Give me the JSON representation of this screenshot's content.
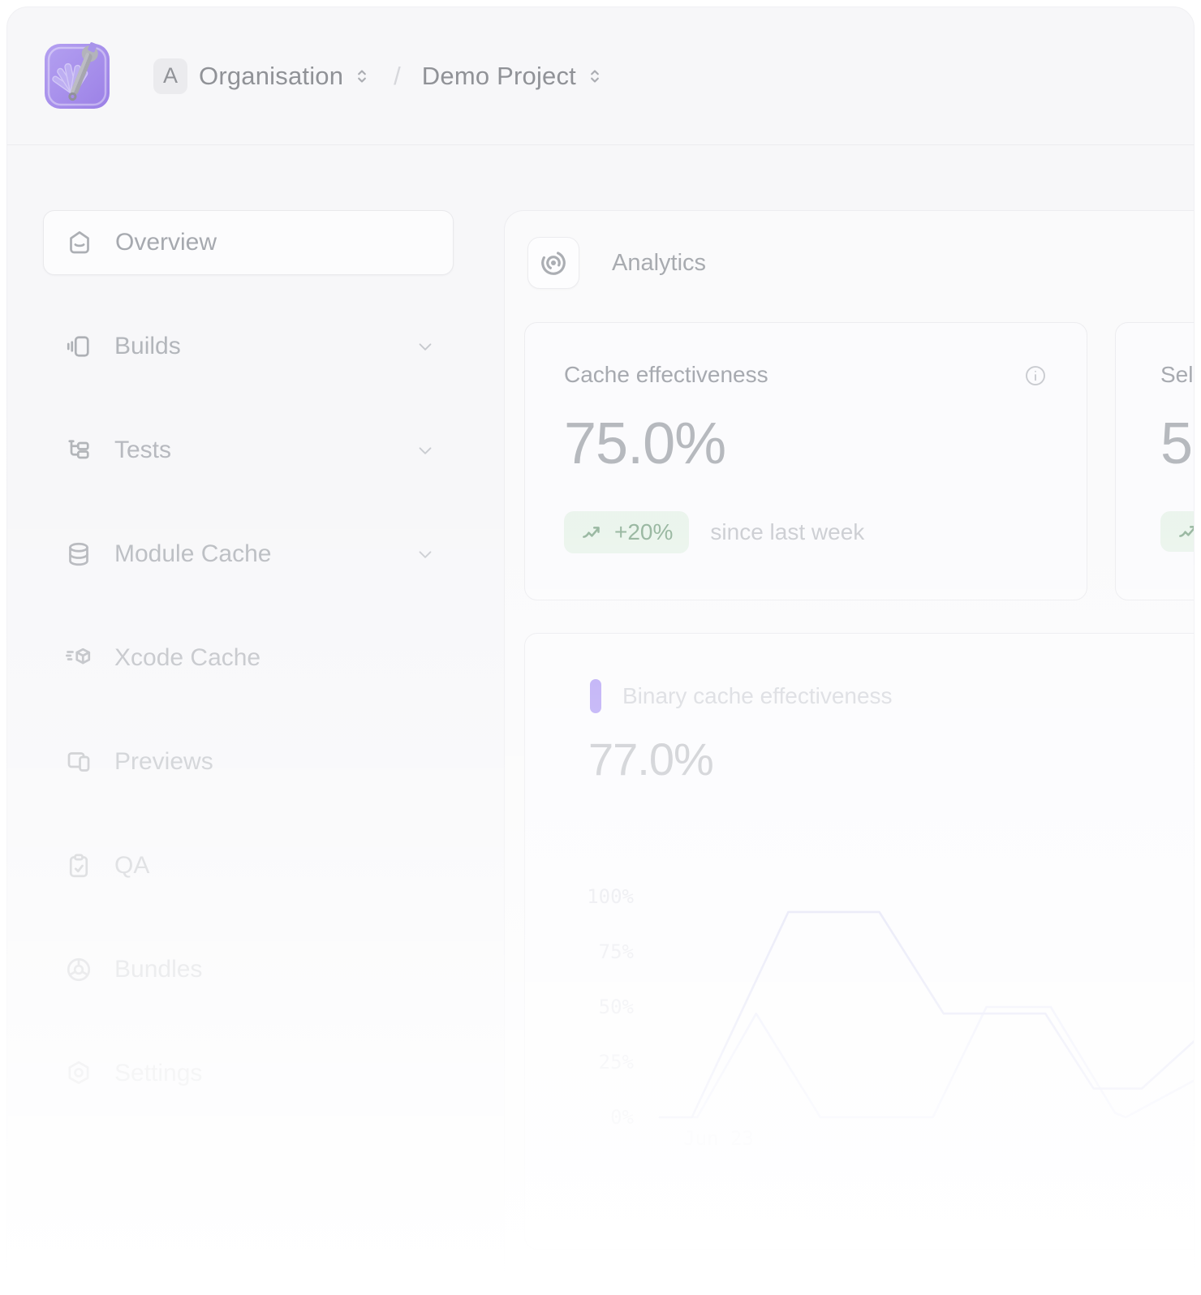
{
  "header": {
    "breadcrumb": {
      "org_avatar": "A",
      "organisation": "Organisation",
      "separator": "/",
      "project": "Demo Project"
    }
  },
  "sidebar": {
    "items": [
      {
        "label": "Overview",
        "icon": "home-icon",
        "selected": true,
        "expandable": false
      },
      {
        "label": "Builds",
        "icon": "builds-icon",
        "selected": false,
        "expandable": true
      },
      {
        "label": "Tests",
        "icon": "tests-tree-icon",
        "selected": false,
        "expandable": true
      },
      {
        "label": "Module Cache",
        "icon": "database-icon",
        "selected": false,
        "expandable": true
      },
      {
        "label": "Xcode Cache",
        "icon": "fast-cube-icon",
        "selected": false,
        "expandable": false
      },
      {
        "label": "Previews",
        "icon": "previews-icon",
        "selected": false,
        "expandable": false
      },
      {
        "label": "QA",
        "icon": "clipboard-icon",
        "selected": false,
        "expandable": false
      },
      {
        "label": "Bundles",
        "icon": "bundles-icon",
        "selected": false,
        "expandable": false
      },
      {
        "label": "Settings",
        "icon": "settings-icon",
        "selected": false,
        "expandable": false
      }
    ]
  },
  "main": {
    "section_title": "Analytics",
    "cache_card": {
      "title": "Cache effectiveness",
      "value": "75.0%",
      "delta": "+20%",
      "delta_caption": "since last week"
    },
    "partial_card": {
      "title_visible": "Sel",
      "value_visible": "5"
    },
    "binary_cache": {
      "legend": "Binary cache effectiveness",
      "value": "77.0%"
    }
  },
  "chart_data": {
    "type": "line",
    "title": "Binary cache effectiveness",
    "xlabel": "",
    "ylabel": "",
    "ylim": [
      0,
      100
    ],
    "grid": false,
    "legend_position": "top-left",
    "yticks": [
      {
        "label": "0%",
        "value": 0
      },
      {
        "label": "25%",
        "value": 25
      },
      {
        "label": "50%",
        "value": 50
      },
      {
        "label": "75%",
        "value": 75
      },
      {
        "label": "100%",
        "value": 100
      }
    ],
    "xticks": [
      {
        "label": "Jun 23",
        "x": 0.11
      }
    ],
    "series": [
      {
        "name": "Binary cache effectiveness",
        "color": "#d7d8f2",
        "points": [
          [
            0,
            0
          ],
          [
            0.06,
            0
          ],
          [
            0.24,
            93
          ],
          [
            0.41,
            93
          ],
          [
            0.53,
            47
          ],
          [
            0.72,
            47
          ],
          [
            0.81,
            13
          ],
          [
            0.9,
            13
          ],
          [
            1.0,
            35
          ]
        ]
      },
      {
        "name": "",
        "color": "#e4e5f8",
        "points": [
          [
            0,
            0
          ],
          [
            0.07,
            0
          ],
          [
            0.18,
            47
          ],
          [
            0.3,
            0
          ],
          [
            0.51,
            0
          ],
          [
            0.61,
            50
          ],
          [
            0.73,
            50
          ],
          [
            0.85,
            2
          ],
          [
            0.87,
            0
          ],
          [
            1.0,
            17
          ]
        ]
      }
    ]
  },
  "colors": {
    "accent_purple": "#b6a4f5",
    "logo_purple": "#a48ce9",
    "positive_green": "#94b49c",
    "positive_green_bg": "#eaf4ec",
    "line_primary": "#d7d8f2",
    "line_secondary": "#e4e5f8"
  }
}
